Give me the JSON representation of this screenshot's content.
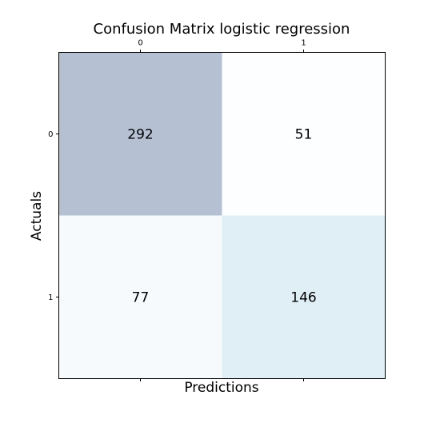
{
  "chart_data": {
    "type": "heatmap",
    "title": "Confusion Matrix logistic regression",
    "xlabel": "Predictions",
    "ylabel": "Actuals",
    "x_tick_labels": [
      "0",
      "1"
    ],
    "y_tick_labels": [
      "0",
      "1"
    ],
    "values": [
      [
        292,
        51
      ],
      [
        77,
        146
      ]
    ],
    "colormap": "Blues",
    "cell_alpha": 0.3,
    "grid": false,
    "x_ticks_position": "top"
  }
}
